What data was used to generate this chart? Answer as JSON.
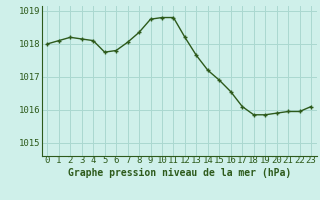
{
  "x": [
    0,
    1,
    2,
    3,
    4,
    5,
    6,
    7,
    8,
    9,
    10,
    11,
    12,
    13,
    14,
    15,
    16,
    17,
    18,
    19,
    20,
    21,
    22,
    23
  ],
  "y": [
    1018.0,
    1018.1,
    1018.2,
    1018.15,
    1018.1,
    1017.75,
    1017.8,
    1018.05,
    1018.35,
    1018.75,
    1018.8,
    1018.8,
    1018.2,
    1017.65,
    1017.2,
    1016.9,
    1016.55,
    1016.1,
    1015.85,
    1015.85,
    1015.9,
    1015.95,
    1015.95,
    1016.1
  ],
  "line_color": "#2d5a1b",
  "marker_color": "#2d5a1b",
  "bg_color": "#cff0ea",
  "grid_color": "#aad8d0",
  "axis_label_color": "#2d5a1b",
  "ylabel_ticks": [
    1015,
    1016,
    1017,
    1018,
    1019
  ],
  "xlabel": "Graphe pression niveau de la mer (hPa)",
  "ylim": [
    1014.6,
    1019.15
  ],
  "xlim": [
    -0.5,
    23.5
  ],
  "tick_fontsize": 6.5,
  "label_fontsize": 7.0
}
